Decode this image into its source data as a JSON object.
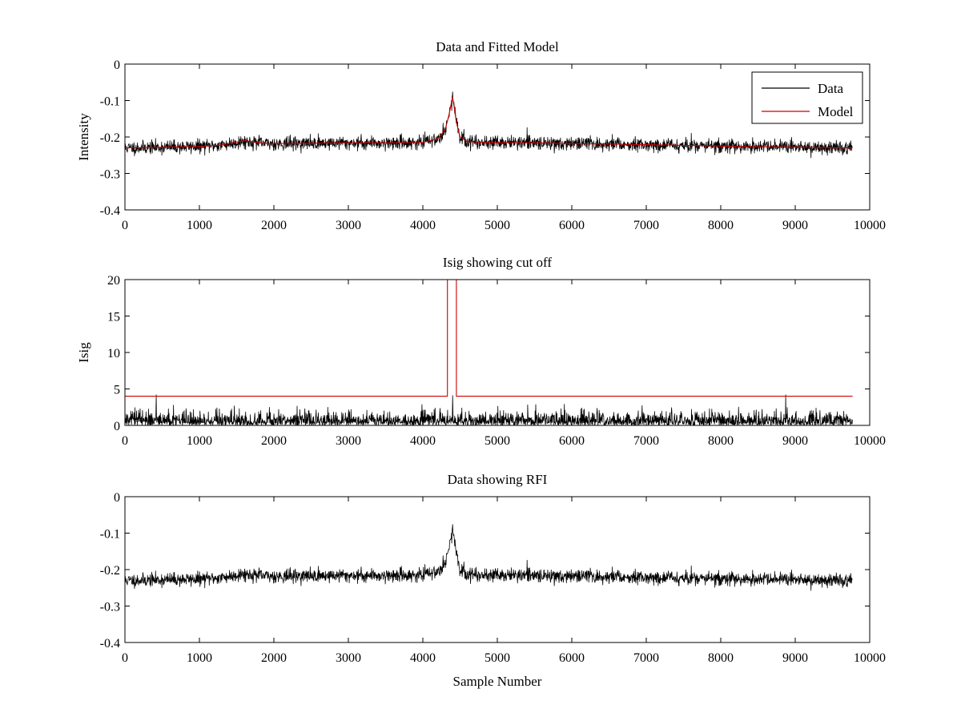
{
  "chart_data": [
    {
      "type": "line",
      "title": "Data and Fitted Model",
      "xlabel": "",
      "ylabel": "Intensity",
      "xlim": [
        0,
        10000
      ],
      "ylim": [
        -0.4,
        0
      ],
      "x_ticks": [
        0,
        1000,
        2000,
        3000,
        4000,
        5000,
        6000,
        7000,
        8000,
        9000,
        10000
      ],
      "y_ticks": [
        0,
        -0.1,
        -0.2,
        -0.3,
        -0.4
      ],
      "x_tick_labels": [
        "0",
        "1000",
        "2000",
        "3000",
        "4000",
        "5000",
        "6000",
        "7000",
        "8000",
        "9000",
        "10000"
      ],
      "y_tick_labels": [
        "0",
        "-0.1",
        "-0.2",
        "-0.3",
        "-0.4"
      ],
      "legend": {
        "position": "top-right",
        "entries": [
          "Data",
          "Model"
        ]
      },
      "series": [
        {
          "name": "Data",
          "color": "#000000",
          "kind": "noisy",
          "noise_std": 0.009,
          "seed": 11,
          "x": [
            0,
            500,
            1000,
            1300,
            1600,
            1900,
            2500,
            3000,
            3500,
            4000,
            4200,
            4300,
            4350,
            4400,
            4450,
            4500,
            4600,
            5000,
            5500,
            6000,
            7000,
            8000,
            9000,
            9770
          ],
          "y": [
            -0.23,
            -0.228,
            -0.226,
            -0.222,
            -0.212,
            -0.218,
            -0.217,
            -0.216,
            -0.216,
            -0.215,
            -0.205,
            -0.18,
            -0.14,
            -0.09,
            -0.16,
            -0.2,
            -0.213,
            -0.215,
            -0.216,
            -0.218,
            -0.221,
            -0.225,
            -0.228,
            -0.23
          ]
        },
        {
          "name": "Model",
          "color": "#cc0000",
          "kind": "smooth",
          "x": [
            0,
            500,
            1000,
            1300,
            1600,
            1900,
            2500,
            3000,
            3500,
            4000,
            4200,
            4300,
            4350,
            4400,
            4450,
            4500,
            4600,
            5000,
            5500,
            6000,
            7000,
            8000,
            9000,
            9770
          ],
          "y": [
            -0.23,
            -0.228,
            -0.226,
            -0.222,
            -0.21,
            -0.218,
            -0.217,
            -0.216,
            -0.216,
            -0.215,
            -0.205,
            -0.18,
            -0.14,
            -0.09,
            -0.16,
            -0.2,
            -0.213,
            -0.215,
            -0.216,
            -0.218,
            -0.221,
            -0.225,
            -0.228,
            -0.23
          ]
        }
      ]
    },
    {
      "type": "line",
      "title": "Isig showing cut off",
      "xlabel": "",
      "ylabel": "Isig",
      "xlim": [
        0,
        10000
      ],
      "ylim": [
        0,
        20
      ],
      "x_ticks": [
        0,
        1000,
        2000,
        3000,
        4000,
        5000,
        6000,
        7000,
        8000,
        9000,
        10000
      ],
      "y_ticks": [
        0,
        5,
        10,
        15,
        20
      ],
      "x_tick_labels": [
        "0",
        "1000",
        "2000",
        "3000",
        "4000",
        "5000",
        "6000",
        "7000",
        "8000",
        "9000",
        "10000"
      ],
      "y_tick_labels": [
        "0",
        "5",
        "10",
        "15",
        "20"
      ],
      "series": [
        {
          "name": "Isig",
          "color": "#000000",
          "kind": "abs-noise",
          "noise_std": 0.9,
          "seed": 23,
          "x": [
            0,
            9770
          ],
          "y": [
            0,
            0
          ],
          "spikes": [
            [
              420,
              4.2
            ],
            [
              4400,
              4.1
            ],
            [
              8870,
              4.2
            ]
          ]
        },
        {
          "name": "Cut off",
          "color": "#cc0000",
          "kind": "step",
          "x": [
            0,
            4330,
            4330,
            4450,
            4450,
            9770
          ],
          "y": [
            4,
            4,
            20,
            20,
            4,
            4
          ]
        }
      ]
    },
    {
      "type": "line",
      "title": "Data showing RFI",
      "xlabel": "Sample Number",
      "ylabel": "",
      "xlim": [
        0,
        10000
      ],
      "ylim": [
        -0.4,
        0
      ],
      "x_ticks": [
        0,
        1000,
        2000,
        3000,
        4000,
        5000,
        6000,
        7000,
        8000,
        9000,
        10000
      ],
      "y_ticks": [
        0,
        -0.1,
        -0.2,
        -0.3,
        -0.4
      ],
      "x_tick_labels": [
        "0",
        "1000",
        "2000",
        "3000",
        "4000",
        "5000",
        "6000",
        "7000",
        "8000",
        "9000",
        "10000"
      ],
      "y_tick_labels": [
        "0",
        "-0.1",
        "-0.2",
        "-0.3",
        "-0.4"
      ],
      "series": [
        {
          "name": "Data",
          "color": "#000000",
          "kind": "noisy",
          "noise_std": 0.009,
          "seed": 11,
          "x": [
            0,
            500,
            1000,
            1300,
            1600,
            1900,
            2500,
            3000,
            3500,
            4000,
            4200,
            4300,
            4350,
            4400,
            4450,
            4500,
            4600,
            5000,
            5500,
            6000,
            7000,
            8000,
            9000,
            9770
          ],
          "y": [
            -0.23,
            -0.228,
            -0.226,
            -0.222,
            -0.212,
            -0.218,
            -0.217,
            -0.216,
            -0.216,
            -0.215,
            -0.205,
            -0.18,
            -0.14,
            -0.09,
            -0.16,
            -0.2,
            -0.213,
            -0.215,
            -0.216,
            -0.218,
            -0.221,
            -0.225,
            -0.228,
            -0.23
          ]
        }
      ]
    }
  ]
}
